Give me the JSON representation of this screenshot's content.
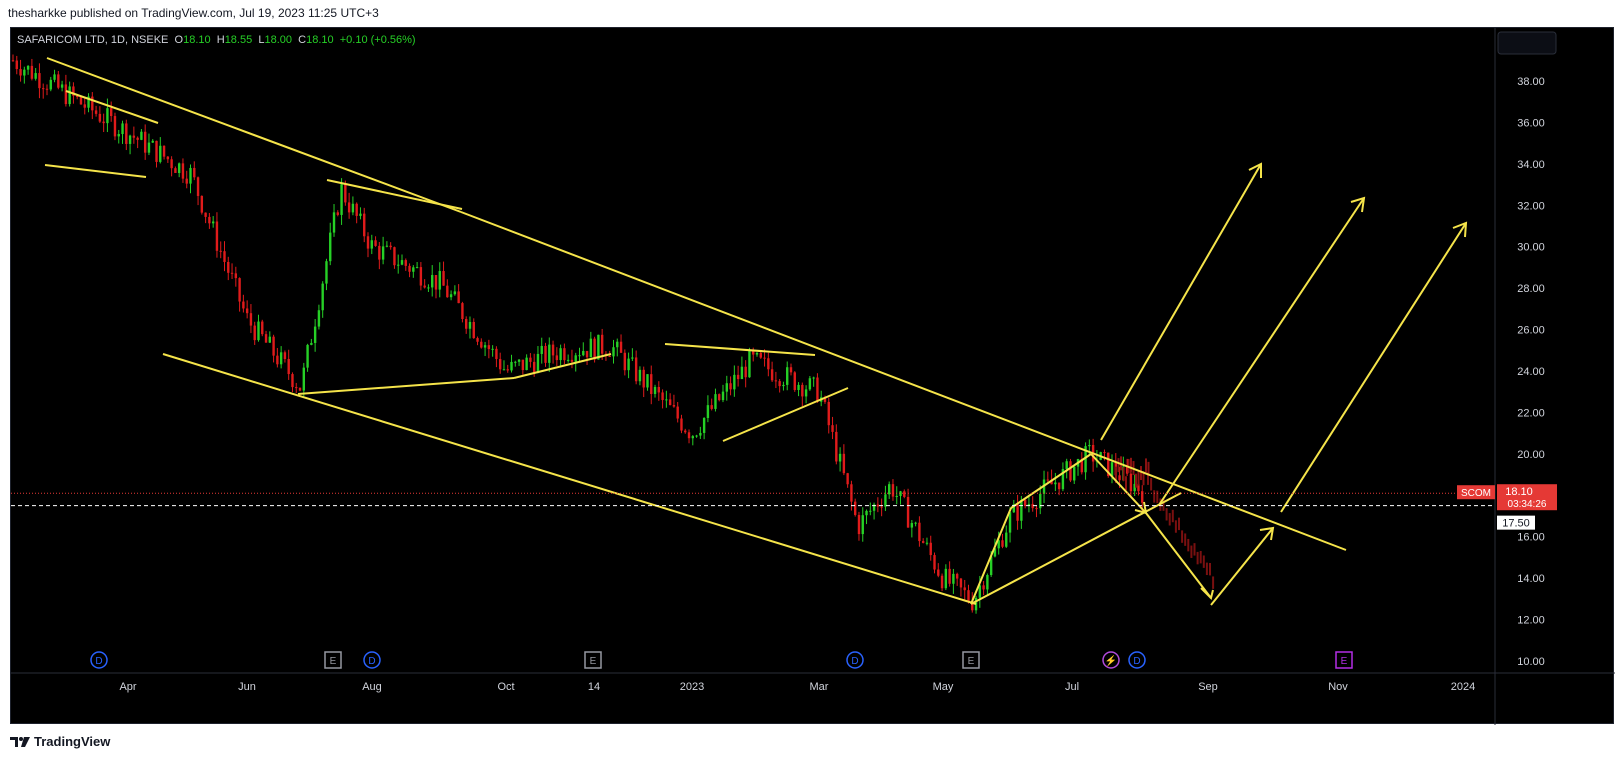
{
  "header": {
    "text": "thesharkke published on TradingView.com, Jul 19, 2023 11:25 UTC+3"
  },
  "legend": {
    "symbol": "SAFARICOM LTD, 1D, NSEKE",
    "o_label": "O",
    "o": "18.10",
    "h_label": "H",
    "h": "18.55",
    "l_label": "L",
    "l": "18.00",
    "c_label": "C",
    "c": "18.10",
    "change": "+0.10 (+0.56%)"
  },
  "footer": {
    "logo_icon": "tradingview-logo-icon",
    "brand": "TradingView"
  },
  "colors": {
    "background": "#000000",
    "up": "#26d026",
    "down": "#e01b1b",
    "drawings": "#f5e44a",
    "price_tag": "#e53935"
  },
  "chart_data": {
    "type": "candlestick",
    "symbol": "SCOM",
    "last_price": "18.10",
    "countdown": "03:34:26",
    "crosshair_price": "17.50",
    "y_ticks": [
      "38.00",
      "36.00",
      "34.00",
      "32.00",
      "30.00",
      "28.00",
      "26.00",
      "24.00",
      "22.00",
      "20.00",
      "18.00",
      "16.00",
      "14.00",
      "12.00",
      "10.00"
    ],
    "x_ticks": [
      "Apr",
      "Jun",
      "Aug",
      "Oct",
      "14",
      "2023",
      "Mar",
      "May",
      "Jul",
      "Sep",
      "Nov",
      "2024"
    ],
    "ylim": [
      10,
      40
    ],
    "approx_close_path": [
      {
        "date": "2022-03",
        "price": 39.0
      },
      {
        "date": "2022-04",
        "price": 35.5
      },
      {
        "date": "2022-05",
        "price": 33.5
      },
      {
        "date": "2022-06",
        "price": 26.5
      },
      {
        "date": "2022-07",
        "price": 23.2
      },
      {
        "date": "2022-07-25",
        "price": 32.8
      },
      {
        "date": "2022-08",
        "price": 30.0
      },
      {
        "date": "2022-09",
        "price": 28.2
      },
      {
        "date": "2022-10",
        "price": 24.0
      },
      {
        "date": "2022-11",
        "price": 25.0
      },
      {
        "date": "2022-12",
        "price": 25.2
      },
      {
        "date": "2023-01",
        "price": 21.0
      },
      {
        "date": "2023-02",
        "price": 24.5
      },
      {
        "date": "2023-03",
        "price": 23.0
      },
      {
        "date": "2023-03-20",
        "price": 16.5
      },
      {
        "date": "2023-04",
        "price": 18.5
      },
      {
        "date": "2023-05",
        "price": 14.0
      },
      {
        "date": "2023-05-20",
        "price": 12.9
      },
      {
        "date": "2023-06",
        "price": 17.0
      },
      {
        "date": "2023-07-10",
        "price": 20.0
      },
      {
        "date": "2023-07-19",
        "price": 18.1
      }
    ],
    "event_markers": [
      "D",
      "E",
      "D",
      "E",
      "D",
      "E",
      "D",
      "E"
    ],
    "event_marker_icons": [
      "dividend-icon",
      "earnings-icon",
      "dividend-icon",
      "earnings-icon",
      "dividend-icon",
      "earnings-icon",
      "lightning-icon",
      "dividend-icon",
      "earnings-icon"
    ]
  }
}
